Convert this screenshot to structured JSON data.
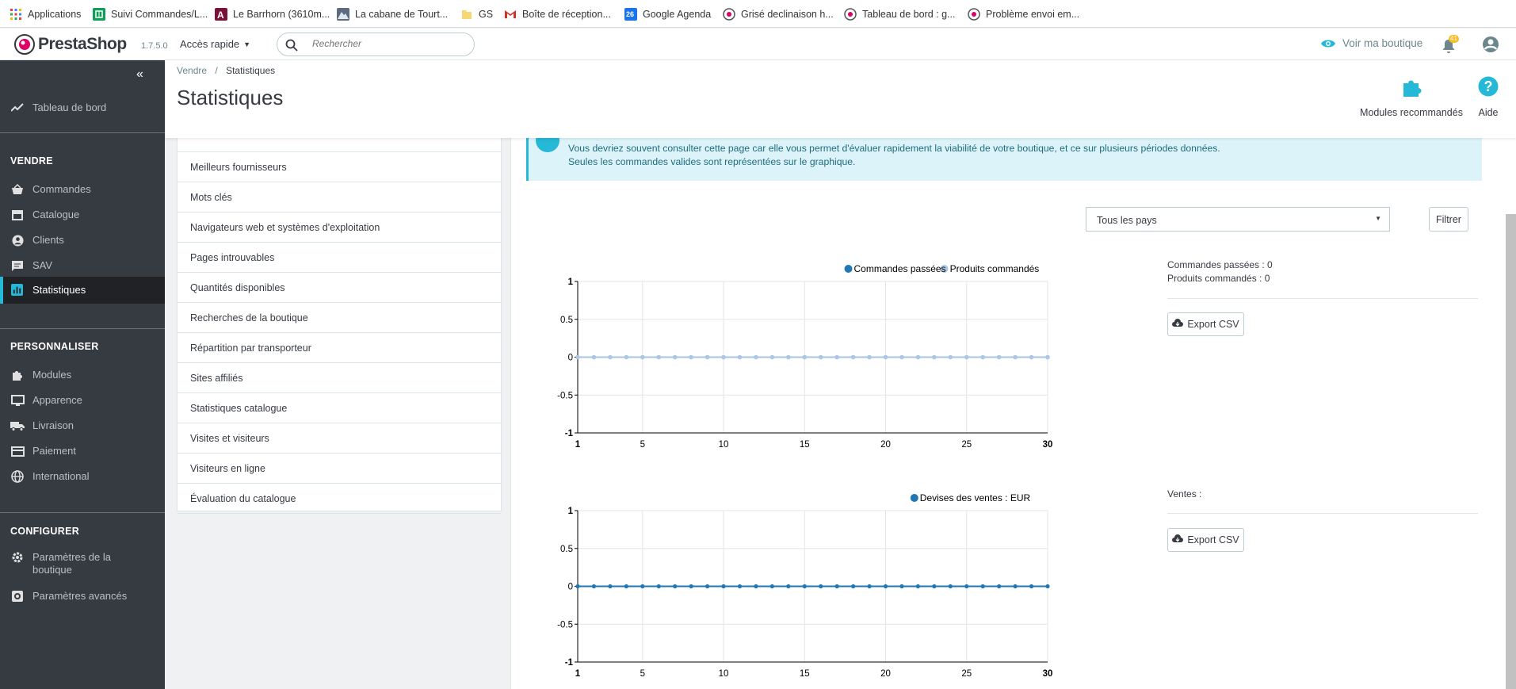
{
  "bookmarks": [
    {
      "label": "Applications",
      "icon": "apps-grid-icon"
    },
    {
      "label": "Suivi Commandes/L...",
      "icon": "sheets-icon"
    },
    {
      "label": "Le Barrhorn (3610m...",
      "icon": "site-icon"
    },
    {
      "label": "La cabane de Tourt...",
      "icon": "mountain-icon"
    },
    {
      "label": "GS",
      "icon": "folder-icon"
    },
    {
      "label": "Boîte de réception...",
      "icon": "gmail-icon"
    },
    {
      "label": "Google Agenda",
      "icon": "calendar-icon"
    },
    {
      "label": "Grisé declinaison h...",
      "icon": "prestashop-icon"
    },
    {
      "label": "Tableau de bord : g...",
      "icon": "prestashop-icon"
    },
    {
      "label": "Problème envoi em...",
      "icon": "prestashop-icon"
    }
  ],
  "calendar_day": "26",
  "topbar": {
    "logo": "PrestaShop",
    "version": "1.7.5.0",
    "quick_access": "Accès rapide",
    "search_placeholder": "Rechercher",
    "view_shop": "Voir ma boutique",
    "notif_count": "41"
  },
  "sidebar": {
    "dashboard": "Tableau de bord",
    "sections": [
      {
        "title": "VENDRE",
        "items": [
          "Commandes",
          "Catalogue",
          "Clients",
          "SAV",
          "Statistiques"
        ]
      },
      {
        "title": "PERSONNALISER",
        "items": [
          "Modules",
          "Apparence",
          "Livraison",
          "Paiement",
          "International"
        ]
      },
      {
        "title": "CONFIGURER",
        "items": [
          "Paramètres de la boutique",
          "Paramètres avancés"
        ]
      }
    ],
    "active": "Statistiques"
  },
  "header": {
    "breadcrumb": [
      "Vendre",
      "Statistiques"
    ],
    "title": "Statistiques",
    "modules_label": "Modules recommandés",
    "help_label": "Aide"
  },
  "stats_menu": [
    "Meilleurs fournisseurs",
    "Mots clés",
    "Navigateurs web et systèmes d'exploitation",
    "Pages introuvables",
    "Quantités disponibles",
    "Recherches de la boutique",
    "Répartition par transporteur",
    "Sites affiliés",
    "Statistiques catalogue",
    "Visites et visiteurs",
    "Visiteurs en ligne",
    "Évaluation du catalogue"
  ],
  "alert": {
    "line1": "Vous devriez souvent consulter cette page car elle vous permet d'évaluer rapidement la viabilité de votre boutique, et ce sur plusieurs périodes données.",
    "line2": "Seules les commandes valides sont représentées sur le graphique."
  },
  "filter": {
    "country": "Tous les pays",
    "button": "Filtrer"
  },
  "summary1": {
    "orders": "Commandes passées : 0",
    "products": "Produits commandés : 0",
    "export": "Export CSV"
  },
  "summary2": {
    "sales": "Ventes :",
    "export": "Export CSV"
  },
  "colors": {
    "accent": "#25b9d7",
    "sidebar": "#363a41",
    "series_dark": "#1f77b4",
    "series_light": "#aec7e8",
    "brand_pink": "#df0067"
  },
  "chart_data": [
    {
      "type": "line",
      "x": [
        1,
        2,
        3,
        4,
        5,
        6,
        7,
        8,
        9,
        10,
        11,
        12,
        13,
        14,
        15,
        16,
        17,
        18,
        19,
        20,
        21,
        22,
        23,
        24,
        25,
        26,
        27,
        28,
        29,
        30
      ],
      "series": [
        {
          "name": "Commandes passées",
          "values": [
            0,
            0,
            0,
            0,
            0,
            0,
            0,
            0,
            0,
            0,
            0,
            0,
            0,
            0,
            0,
            0,
            0,
            0,
            0,
            0,
            0,
            0,
            0,
            0,
            0,
            0,
            0,
            0,
            0,
            0
          ],
          "color": "#1f77b4"
        },
        {
          "name": "Produits commandés",
          "values": [
            0,
            0,
            0,
            0,
            0,
            0,
            0,
            0,
            0,
            0,
            0,
            0,
            0,
            0,
            0,
            0,
            0,
            0,
            0,
            0,
            0,
            0,
            0,
            0,
            0,
            0,
            0,
            0,
            0,
            0
          ],
          "color": "#aec7e8"
        }
      ],
      "xticks": [
        "1",
        "5",
        "10",
        "15",
        "20",
        "25",
        "30"
      ],
      "yticks": [
        "1",
        "0.5",
        "0",
        "-0.5",
        "-1"
      ],
      "xlim": [
        1,
        30
      ],
      "ylim": [
        -1,
        1
      ],
      "grid": true,
      "legend": "top-right"
    },
    {
      "type": "line",
      "x": [
        1,
        2,
        3,
        4,
        5,
        6,
        7,
        8,
        9,
        10,
        11,
        12,
        13,
        14,
        15,
        16,
        17,
        18,
        19,
        20,
        21,
        22,
        23,
        24,
        25,
        26,
        27,
        28,
        29,
        30
      ],
      "series": [
        {
          "name": "Devises des ventes : EUR",
          "values": [
            0,
            0,
            0,
            0,
            0,
            0,
            0,
            0,
            0,
            0,
            0,
            0,
            0,
            0,
            0,
            0,
            0,
            0,
            0,
            0,
            0,
            0,
            0,
            0,
            0,
            0,
            0,
            0,
            0,
            0
          ],
          "color": "#1f77b4"
        }
      ],
      "xticks": [
        "1",
        "5",
        "10",
        "15",
        "20",
        "25",
        "30"
      ],
      "yticks": [
        "1",
        "0.5",
        "0",
        "-0.5",
        "-1"
      ],
      "xlim": [
        1,
        30
      ],
      "ylim": [
        -1,
        1
      ],
      "grid": true,
      "legend": "top-right"
    }
  ]
}
